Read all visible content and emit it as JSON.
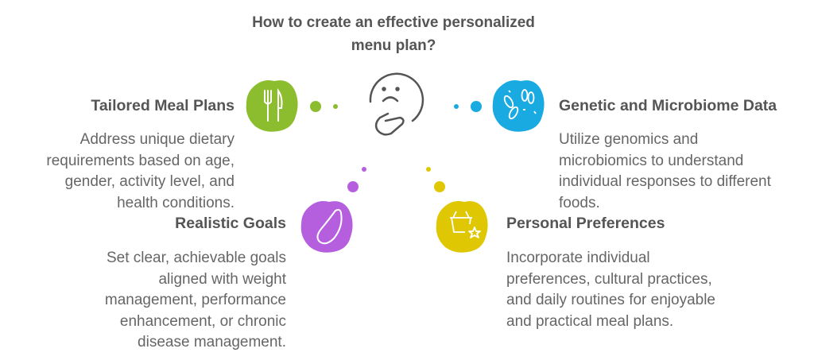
{
  "title": "How to create an effective personalized menu plan?",
  "colors": {
    "green": "#8cbd2e",
    "blue": "#19aae1",
    "purple": "#b55fdf",
    "yellow": "#dfc803",
    "text": "#555555"
  },
  "center_icon": "thinking-face-icon",
  "items": [
    {
      "heading": "Tailored Meal Plans",
      "body": "Address unique dietary requirements based on age, gender, activity level, and health conditions.",
      "icon": "fork-knife-icon"
    },
    {
      "heading": "Genetic and Microbiome Data",
      "body": "Utilize genomics and microbiomics to understand individual responses to different foods.",
      "icon": "bacteria-icon"
    },
    {
      "heading": "Realistic Goals",
      "body": "Set clear, achievable goals aligned with weight management, performance enhancement, or chronic disease management.",
      "icon": "squash-icon"
    },
    {
      "heading": "Personal Preferences",
      "body": "Incorporate individual preferences, cultural practices, and daily routines for enjoyable and practical meal plans.",
      "icon": "basket-star-icon"
    }
  ]
}
